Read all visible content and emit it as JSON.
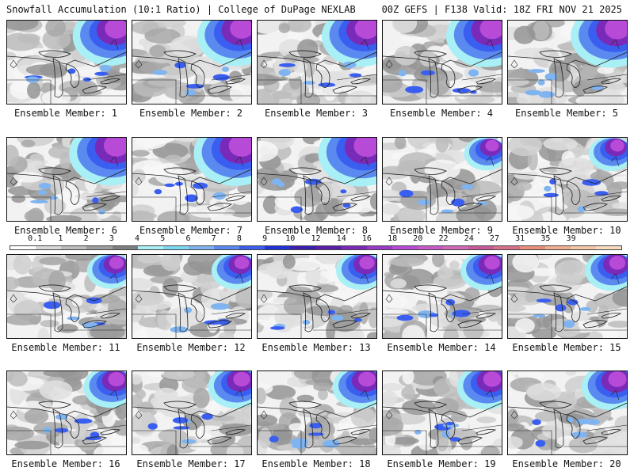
{
  "header": {
    "title": "Snowfall Accumulation (10:1 Ratio) | College of DuPage NEXLAB",
    "run_info": "00Z GEFS | F138 Valid: 18Z FRI NOV 21 2025"
  },
  "legend": {
    "labels": [
      "0.1",
      "1",
      "2",
      "3",
      "4",
      "5",
      "6",
      "7",
      "8",
      "9",
      "10",
      "12",
      "14",
      "16",
      "18",
      "20",
      "22",
      "24",
      "27",
      "31",
      "35",
      "39"
    ],
    "colors": [
      "#ffffff",
      "#d9d9d9",
      "#bdbdbd",
      "#9e9e9e",
      "#7f7f7f",
      "#a8f0f5",
      "#7fd8f2",
      "#7fb4f0",
      "#5a8af0",
      "#3a5ff0",
      "#1f33d9",
      "#3a1fb0",
      "#5a1fa8",
      "#7a2ab8",
      "#9a3ac8",
      "#b84ad8",
      "#c85ac8",
      "#d06ab8",
      "#c85a9a",
      "#d8708a",
      "#e8907a",
      "#f0b090",
      "#f5c8a8",
      "#f8dcc0"
    ]
  },
  "members": [
    {
      "label": "Ensemble Member: 1",
      "n": 1
    },
    {
      "label": "Ensemble Member: 2",
      "n": 2
    },
    {
      "label": "Ensemble Member: 3",
      "n": 3
    },
    {
      "label": "Ensemble Member: 4",
      "n": 4
    },
    {
      "label": "Ensemble Member: 5",
      "n": 5
    },
    {
      "label": "Ensemble Member: 6",
      "n": 6
    },
    {
      "label": "Ensemble Member: 7",
      "n": 7
    },
    {
      "label": "Ensemble Member: 8",
      "n": 8
    },
    {
      "label": "Ensemble Member: 9",
      "n": 9
    },
    {
      "label": "Ensemble Member: 10",
      "n": 10
    },
    {
      "label": "Ensemble Member: 11",
      "n": 11
    },
    {
      "label": "Ensemble Member: 12",
      "n": 12
    },
    {
      "label": "Ensemble Member: 13",
      "n": 13
    },
    {
      "label": "Ensemble Member: 14",
      "n": 14
    },
    {
      "label": "Ensemble Member: 15",
      "n": 15
    },
    {
      "label": "Ensemble Member: 16",
      "n": 16
    },
    {
      "label": "Ensemble Member: 17",
      "n": 17
    },
    {
      "label": "Ensemble Member: 18",
      "n": 18
    },
    {
      "label": "Ensemble Member: 19",
      "n": 19
    },
    {
      "label": "Ensemble Member: 20",
      "n": 20
    }
  ]
}
